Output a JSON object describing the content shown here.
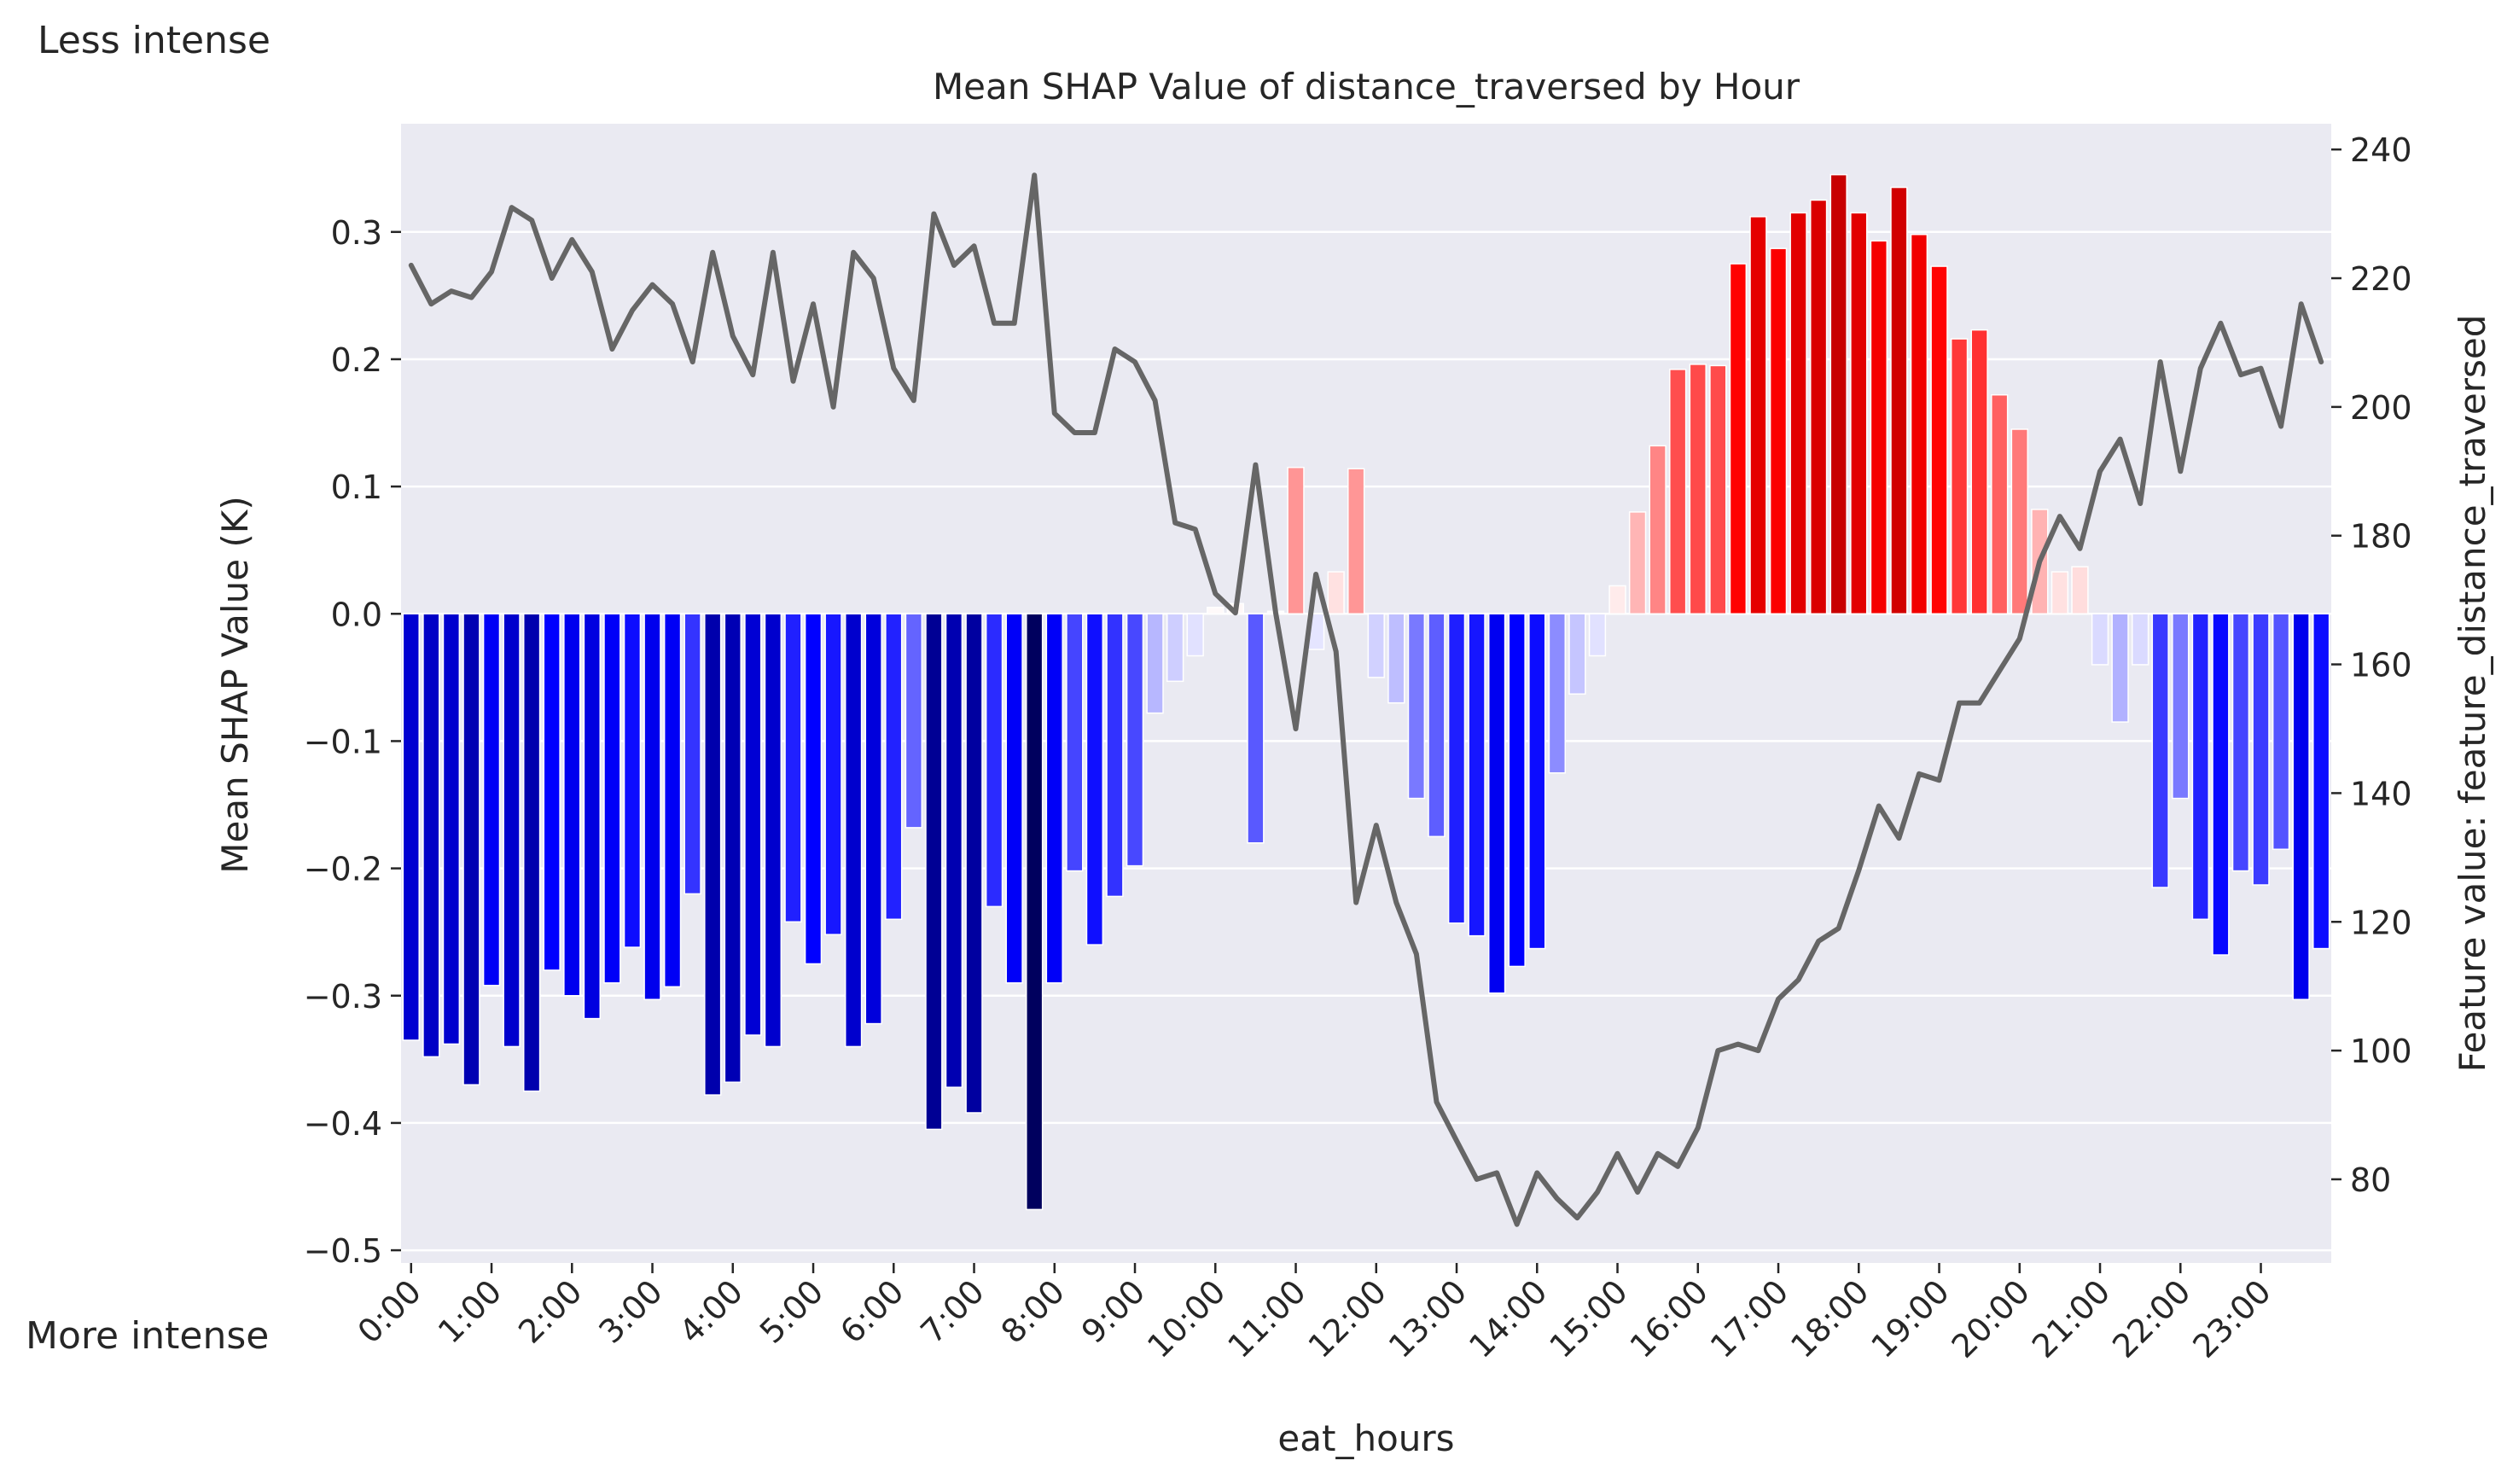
{
  "notes": {
    "top": "Less intense",
    "bottom": "More intense"
  },
  "chart_data": {
    "type": "bar",
    "title": "Mean SHAP Value of distance_traversed by Hour",
    "xlabel": "eat_hours",
    "ylabel": "Mean SHAP Value (K)",
    "y2label": "Feature value: feature_distance_traversed",
    "ylim": [
      -0.51,
      0.385
    ],
    "y2lim": [
      67,
      244
    ],
    "yticks": [
      -0.5,
      -0.4,
      -0.3,
      -0.2,
      -0.1,
      0.0,
      0.1,
      0.2,
      0.3
    ],
    "ytick_labels": [
      "−0.5",
      "−0.4",
      "−0.3",
      "−0.2",
      "−0.1",
      "0.0",
      "0.1",
      "0.2",
      "0.3"
    ],
    "y2ticks": [
      80,
      100,
      120,
      140,
      160,
      180,
      200,
      220,
      240
    ],
    "y2tick_labels": [
      "80",
      "100",
      "120",
      "140",
      "160",
      "180",
      "200",
      "220",
      "240"
    ],
    "grid": true,
    "bar_colormap": "bwr (negative = blue, positive = red; intensity by magnitude)",
    "line_color": "#666666",
    "background_color": "#eaeaf2",
    "hour_labels": [
      "0:00",
      "1:00",
      "2:00",
      "3:00",
      "4:00",
      "5:00",
      "6:00",
      "7:00",
      "8:00",
      "9:00",
      "10:00",
      "11:00",
      "12:00",
      "13:00",
      "14:00",
      "15:00",
      "16:00",
      "17:00",
      "18:00",
      "19:00",
      "20:00",
      "21:00",
      "22:00",
      "23:00"
    ],
    "categories_per_hour": 4,
    "bar_values": [
      -0.335,
      -0.348,
      -0.338,
      -0.37,
      -0.292,
      -0.34,
      -0.375,
      -0.28,
      -0.3,
      -0.318,
      -0.29,
      -0.262,
      -0.303,
      -0.293,
      -0.22,
      -0.378,
      -0.368,
      -0.331,
      -0.34,
      -0.242,
      -0.275,
      -0.252,
      -0.34,
      -0.322,
      -0.24,
      -0.168,
      -0.405,
      -0.372,
      -0.392,
      -0.23,
      -0.29,
      -0.468,
      -0.29,
      -0.202,
      -0.26,
      -0.222,
      -0.198,
      -0.078,
      -0.053,
      -0.033,
      0.005,
      0.008,
      -0.18,
      0.002,
      0.115,
      -0.028,
      0.033,
      0.114,
      -0.05,
      -0.07,
      -0.145,
      -0.175,
      -0.243,
      -0.253,
      -0.298,
      -0.277,
      -0.263,
      -0.125,
      -0.063,
      -0.033,
      0.022,
      0.08,
      0.132,
      0.192,
      0.196,
      0.195,
      0.275,
      0.312,
      0.287,
      0.315,
      0.325,
      0.345,
      0.315,
      0.293,
      0.335,
      0.298,
      0.273,
      0.216,
      0.223,
      0.172,
      0.145,
      0.082,
      0.033,
      0.037,
      -0.04,
      -0.085,
      -0.04,
      -0.215,
      -0.145,
      -0.24,
      -0.268,
      -0.202,
      -0.213,
      -0.185,
      -0.303,
      -0.263
    ],
    "line_values": [
      222,
      216,
      218,
      217,
      221,
      231,
      229,
      220,
      226,
      221,
      209,
      215,
      219,
      216,
      207,
      224,
      211,
      205,
      224,
      204,
      216,
      200,
      224,
      220,
      206,
      201,
      230,
      222,
      225,
      213,
      213,
      236,
      199,
      196,
      196,
      209,
      207,
      201,
      182,
      181,
      171,
      168,
      191,
      168,
      150,
      174,
      162,
      123,
      135,
      123,
      115,
      92,
      86,
      80,
      81,
      73,
      81,
      77,
      74,
      78,
      84,
      78,
      84,
      82,
      88,
      100,
      101,
      100,
      108,
      111,
      117,
      119,
      128,
      138,
      133,
      143,
      142,
      154,
      154,
      159,
      164,
      176,
      183,
      178,
      190,
      195,
      185,
      207,
      190,
      206,
      213,
      205,
      206,
      197,
      216,
      207
    ]
  }
}
